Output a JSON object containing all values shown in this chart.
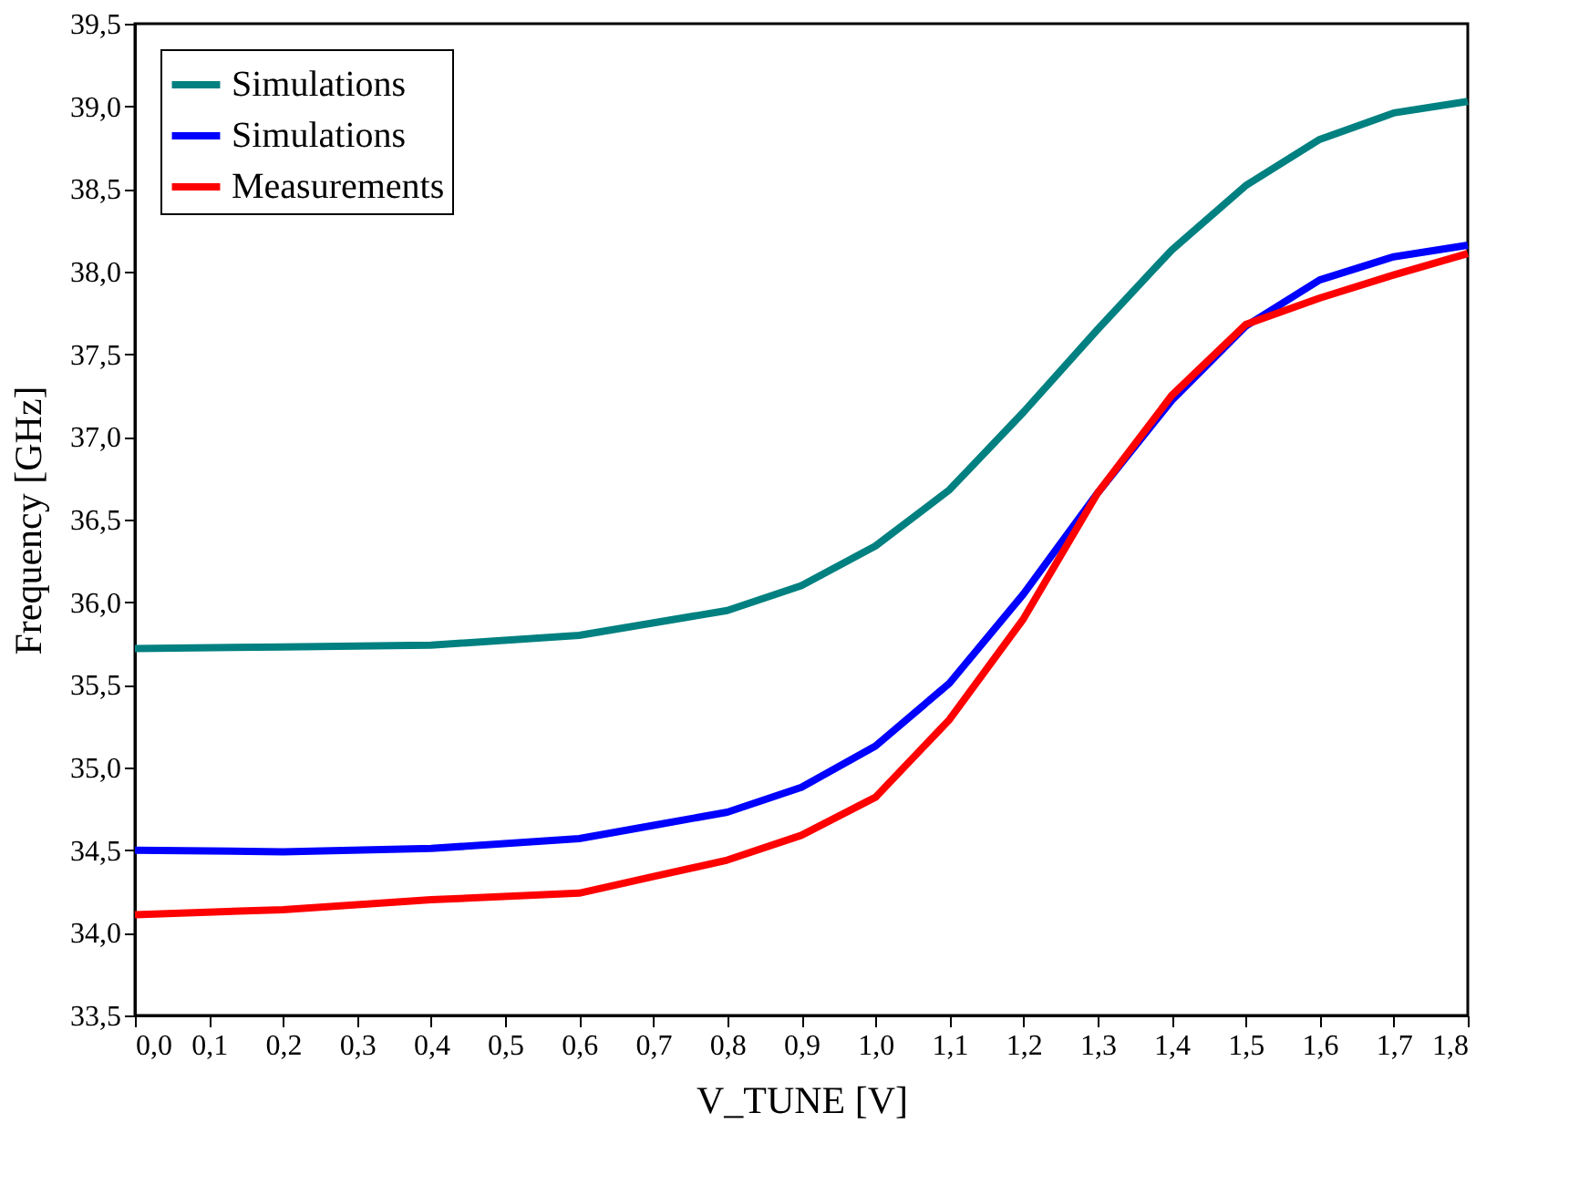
{
  "chart_data": {
    "type": "line",
    "xlabel": "V_TUNE [V]",
    "ylabel": "Frequency [GHz]",
    "xlim": [
      0,
      1.8
    ],
    "ylim": [
      33.5,
      39.5
    ],
    "xticks": [
      {
        "value": 0,
        "label": "0,0"
      },
      {
        "value": 0.1,
        "label": "0,1"
      },
      {
        "value": 0.2,
        "label": "0,2"
      },
      {
        "value": 0.3,
        "label": "0,3"
      },
      {
        "value": 0.4,
        "label": "0,4"
      },
      {
        "value": 0.5,
        "label": "0,5"
      },
      {
        "value": 0.6,
        "label": "0,6"
      },
      {
        "value": 0.7,
        "label": "0,7"
      },
      {
        "value": 0.8,
        "label": "0,8"
      },
      {
        "value": 0.9,
        "label": "0,9"
      },
      {
        "value": 1.0,
        "label": "1,0"
      },
      {
        "value": 1.1,
        "label": "1,1"
      },
      {
        "value": 1.2,
        "label": "1,2"
      },
      {
        "value": 1.3,
        "label": "1,3"
      },
      {
        "value": 1.4,
        "label": "1,4"
      },
      {
        "value": 1.5,
        "label": "1,5"
      },
      {
        "value": 1.6,
        "label": "1,6"
      },
      {
        "value": 1.7,
        "label": "1,7"
      },
      {
        "value": 1.8,
        "label": "1,8"
      }
    ],
    "yticks": [
      {
        "value": 33.5,
        "label": "33,5"
      },
      {
        "value": 34.0,
        "label": "34,0"
      },
      {
        "value": 34.5,
        "label": "34,5"
      },
      {
        "value": 35.0,
        "label": "35,0"
      },
      {
        "value": 35.5,
        "label": "35,5"
      },
      {
        "value": 36.0,
        "label": "36,0"
      },
      {
        "value": 36.5,
        "label": "36,5"
      },
      {
        "value": 37.0,
        "label": "37,0"
      },
      {
        "value": 37.5,
        "label": "37,5"
      },
      {
        "value": 38.0,
        "label": "38,0"
      },
      {
        "value": 38.5,
        "label": "38,5"
      },
      {
        "value": 39.0,
        "label": "39,0"
      },
      {
        "value": 39.5,
        "label": "39,5"
      }
    ],
    "grid": false,
    "legend": "top left",
    "marker": "none",
    "line_style": "solid",
    "series": [
      {
        "name": "Simulations",
        "color": "#008080",
        "x": [
          0,
          0.2,
          0.4,
          0.6,
          0.8,
          0.9,
          1.0,
          1.1,
          1.2,
          1.3,
          1.4,
          1.5,
          1.6,
          1.7,
          1.8
        ],
        "values": [
          35.72,
          35.73,
          35.74,
          35.8,
          35.95,
          36.1,
          36.34,
          36.68,
          37.15,
          37.65,
          38.13,
          38.52,
          38.8,
          38.96,
          39.03
        ]
      },
      {
        "name": "Simulations",
        "color": "#0000ff",
        "x": [
          0,
          0.2,
          0.4,
          0.6,
          0.7,
          0.8,
          0.9,
          1.0,
          1.1,
          1.2,
          1.3,
          1.4,
          1.5,
          1.6,
          1.7,
          1.8
        ],
        "values": [
          34.5,
          34.49,
          34.51,
          34.57,
          34.65,
          34.73,
          34.88,
          35.13,
          35.51,
          36.05,
          36.66,
          37.22,
          37.67,
          37.95,
          38.09,
          38.16
        ]
      },
      {
        "name": "Measurements",
        "color": "#ff0000",
        "x": [
          0,
          0.2,
          0.4,
          0.6,
          0.7,
          0.8,
          0.9,
          1.0,
          1.1,
          1.2,
          1.3,
          1.4,
          1.5,
          1.6,
          1.7,
          1.8
        ],
        "values": [
          34.11,
          34.14,
          34.2,
          34.24,
          34.34,
          34.44,
          34.59,
          34.82,
          35.29,
          35.9,
          36.66,
          37.25,
          37.68,
          37.84,
          37.98,
          38.11
        ]
      }
    ]
  }
}
